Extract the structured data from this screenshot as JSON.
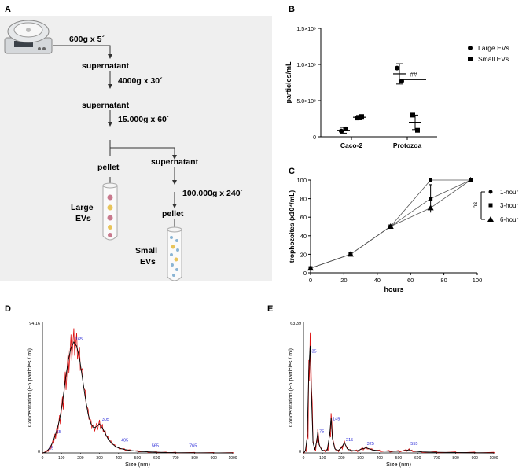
{
  "panels": {
    "a": "A",
    "b": "B",
    "c": "C",
    "d": "D",
    "e": "E"
  },
  "flow": {
    "step1": "600g x 5´",
    "supernatant1": "supernatant",
    "step2": "4000g x 30´",
    "supernatant2": "supernatant",
    "step3": "15.000g x 60´",
    "pellet1": "pellet",
    "supernatant3": "supernatant",
    "step4": "100.000g x 240´",
    "pellet2": "pellet",
    "large_evs_line1": "Large",
    "large_evs_line2": "EVs",
    "small_evs_line1": "Small",
    "small_evs_line2": "EVs",
    "colors": {
      "background": "#efefef",
      "tube_pink": "#c97a8e",
      "tube_yellow": "#e8c45a",
      "tube_blue": "#8ab4d4"
    }
  },
  "chart_data": [
    {
      "panel": "B",
      "type": "scatter",
      "ylabel": "particles/mL",
      "yticks": [
        "0",
        "5.0×10⁸",
        "1.0×10⁹",
        "1.5×10⁹"
      ],
      "ytick_values": [
        0,
        500000000,
        1000000000,
        1500000000
      ],
      "ylim": [
        0,
        1500000000
      ],
      "categories": [
        "Caco-2",
        "Protozoa"
      ],
      "series": [
        {
          "name": "Large EVs",
          "marker": "circle",
          "points": [
            [
              80000000,
              110000000
            ],
            [
              950000000,
              770000000
            ]
          ],
          "means": [
            90000000,
            870000000
          ],
          "errs": [
            40000000,
            140000000
          ]
        },
        {
          "name": "Small EVs",
          "marker": "square",
          "points": [
            [
              260000000,
              280000000
            ],
            [
              300000000,
              90000000
            ]
          ],
          "means": [
            270000000,
            200000000
          ],
          "errs": [
            25000000,
            100000000
          ]
        }
      ],
      "annotation": "##"
    },
    {
      "panel": "C",
      "type": "line",
      "xlabel": "hours",
      "ylabel": "trophozoites (x10⁴/mL)",
      "xlim": [
        0,
        100
      ],
      "ylim": [
        0,
        100
      ],
      "xticks": [
        0,
        20,
        40,
        60,
        80,
        100
      ],
      "yticks": [
        0,
        20,
        40,
        60,
        80,
        100
      ],
      "series": [
        {
          "name": "1-hour",
          "marker": "circle",
          "x": [
            0,
            24,
            48,
            72,
            96
          ],
          "y": [
            5,
            20,
            50,
            100,
            100
          ]
        },
        {
          "name": "3-hour",
          "marker": "square",
          "x": [
            0,
            24,
            48,
            72,
            96
          ],
          "y": [
            5,
            20,
            50,
            80,
            100
          ],
          "errs": [
            0,
            0,
            0,
            15,
            0
          ]
        },
        {
          "name": "6-hour",
          "marker": "triangle",
          "x": [
            0,
            24,
            48,
            72,
            96
          ],
          "y": [
            5,
            20,
            50,
            70,
            100
          ]
        }
      ],
      "sig_label": "ns"
    },
    {
      "panel": "D",
      "type": "line",
      "xlabel": "Size (nm)",
      "ylabel": "Concentration (E6 particles / ml)",
      "ymax_label": "94.16",
      "xlim": [
        0,
        1000
      ],
      "ylim": [
        0,
        94.16
      ],
      "xticks": [
        0,
        100,
        200,
        300,
        400,
        500,
        600,
        700,
        800,
        900,
        1000
      ],
      "peaks": [
        {
          "label": "25",
          "x": 25,
          "y": 1.5
        },
        {
          "label": "65",
          "x": 65,
          "y": 13
        },
        {
          "label": "165",
          "x": 165,
          "y": 80
        },
        {
          "label": "305",
          "x": 305,
          "y": 22
        },
        {
          "label": "405",
          "x": 405,
          "y": 7
        },
        {
          "label": "565",
          "x": 565,
          "y": 3
        },
        {
          "label": "765",
          "x": 765,
          "y": 3
        }
      ],
      "curve_x": [
        0,
        15,
        25,
        40,
        55,
        65,
        75,
        90,
        105,
        120,
        135,
        150,
        165,
        180,
        195,
        210,
        225,
        240,
        255,
        270,
        285,
        300,
        315,
        330,
        345,
        360,
        380,
        400,
        430,
        460,
        500,
        550,
        600,
        650,
        700,
        800,
        900,
        1000
      ],
      "curve_y": [
        0,
        0.5,
        1.5,
        4,
        8,
        12,
        16,
        24,
        36,
        52,
        66,
        76,
        80,
        77,
        68,
        54,
        40,
        28,
        21,
        18,
        19,
        21,
        18,
        14,
        10,
        7.5,
        5,
        3.5,
        2.5,
        1.8,
        1.2,
        0.8,
        0.5,
        0.3,
        0.2,
        0.1,
        0.05,
        0
      ]
    },
    {
      "panel": "E",
      "type": "line",
      "xlabel": "Size (nm)",
      "ylabel": "Concentration (E6 particles / ml)",
      "ymax_label": "63.39",
      "xlim": [
        0,
        1000
      ],
      "ylim": [
        0,
        63.39
      ],
      "xticks": [
        0,
        100,
        200,
        300,
        400,
        500,
        600,
        700,
        800,
        900,
        1000
      ],
      "peaks": [
        {
          "label": "35",
          "x": 35,
          "y": 48
        },
        {
          "label": "75",
          "x": 75,
          "y": 9
        },
        {
          "label": "145",
          "x": 145,
          "y": 15
        },
        {
          "label": "215",
          "x": 215,
          "y": 5
        },
        {
          "label": "325",
          "x": 325,
          "y": 3
        },
        {
          "label": "555",
          "x": 555,
          "y": 3
        }
      ],
      "curve_x": [
        0,
        10,
        20,
        28,
        35,
        42,
        50,
        60,
        70,
        75,
        82,
        95,
        110,
        125,
        138,
        145,
        152,
        165,
        180,
        200,
        215,
        230,
        250,
        280,
        310,
        330,
        360,
        400,
        450,
        500,
        540,
        555,
        570,
        620,
        700,
        800,
        900,
        1000
      ],
      "curve_y": [
        0,
        1,
        8,
        40,
        52,
        28,
        5,
        1.5,
        6,
        10,
        4,
        1.5,
        1,
        1.5,
        9,
        17,
        7,
        2,
        1,
        2.5,
        5,
        2,
        1.2,
        1,
        2,
        2.5,
        1.5,
        1,
        0.8,
        0.8,
        1.2,
        1.5,
        1,
        0.5,
        0.3,
        0.2,
        0.1,
        0
      ]
    }
  ],
  "legend_b": {
    "large": "Large EVs",
    "small": "Small EVs"
  },
  "legend_c": {
    "one": "1-hour",
    "three": "3-hour",
    "six": "6-hour",
    "ns": "ns"
  }
}
